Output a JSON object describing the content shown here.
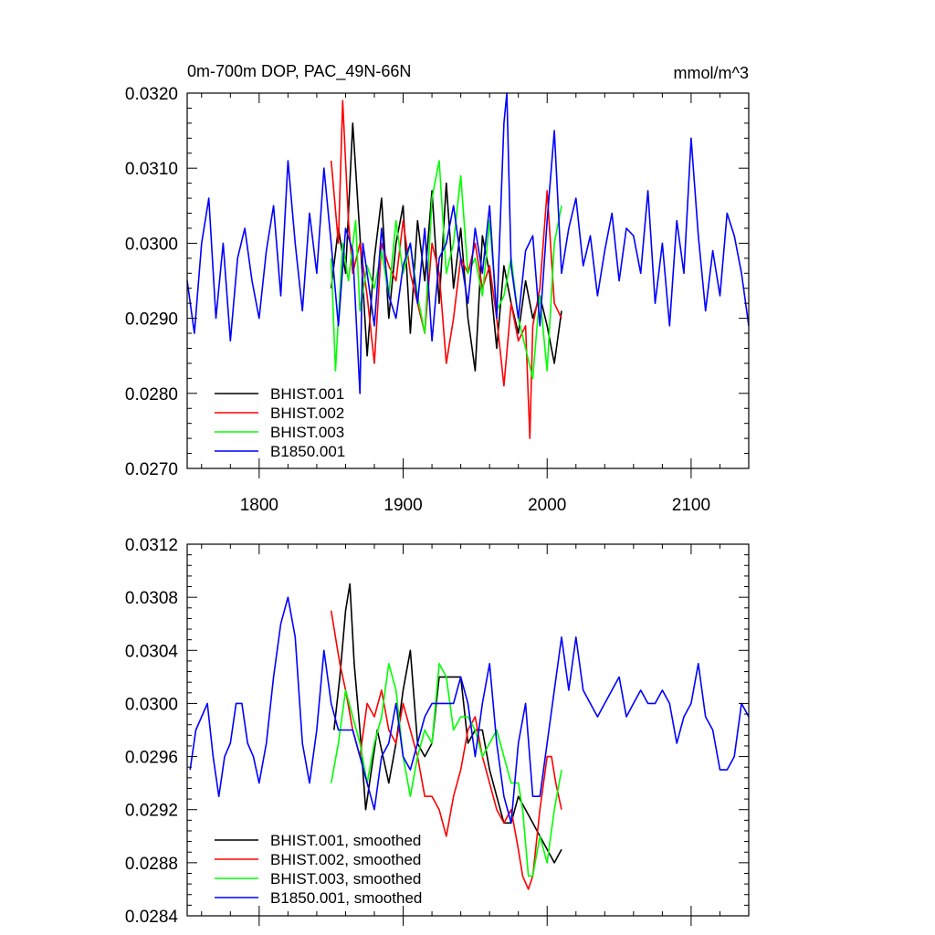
{
  "chart_data": [
    {
      "type": "line",
      "title": "0m-700m DOP, PAC_49N-66N",
      "units": "mmol/m^3",
      "xlim": [
        1750,
        2140
      ],
      "ylim": [
        0.027,
        0.032
      ],
      "x_ticks": [
        1800,
        1900,
        2000,
        2100
      ],
      "x_tick_labels": [
        "1800",
        "1900",
        "2000",
        "2100"
      ],
      "y_ticks": [
        0.027,
        0.028,
        0.029,
        0.03,
        0.031,
        0.032
      ],
      "y_tick_labels": [
        "0.0270",
        "0.0280",
        "0.0290",
        "0.0300",
        "0.0310",
        "0.0320"
      ],
      "legend_position": "bottom-left",
      "series": [
        {
          "name": "BHIST.001",
          "color": "#000000",
          "x": [
            1850,
            1855,
            1860,
            1865,
            1870,
            1875,
            1880,
            1885,
            1890,
            1895,
            1900,
            1905,
            1910,
            1915,
            1920,
            1925,
            1930,
            1935,
            1940,
            1945,
            1950,
            1955,
            1960,
            1965,
            1970,
            1975,
            1980,
            1985,
            1990,
            1995,
            2000,
            2005,
            2010
          ],
          "y": [
            0.0294,
            0.0302,
            0.0296,
            0.0316,
            0.0301,
            0.0285,
            0.0298,
            0.0306,
            0.029,
            0.03,
            0.0305,
            0.0288,
            0.0303,
            0.0295,
            0.0307,
            0.0292,
            0.0308,
            0.0294,
            0.0302,
            0.029,
            0.0283,
            0.0301,
            0.0296,
            0.0286,
            0.0297,
            0.0292,
            0.0288,
            0.0295,
            0.029,
            0.0293,
            0.0289,
            0.0284,
            0.0291
          ]
        },
        {
          "name": "BHIST.002",
          "color": "#ff0000",
          "x": [
            1850,
            1855,
            1858,
            1862,
            1865,
            1870,
            1875,
            1880,
            1885,
            1890,
            1895,
            1900,
            1905,
            1910,
            1915,
            1920,
            1925,
            1930,
            1935,
            1940,
            1945,
            1950,
            1955,
            1960,
            1965,
            1970,
            1975,
            1980,
            1985,
            1988,
            1990,
            1995,
            2000,
            2005,
            2010
          ],
          "y": [
            0.0311,
            0.03,
            0.0319,
            0.0303,
            0.0296,
            0.03,
            0.0293,
            0.0284,
            0.03,
            0.0297,
            0.0295,
            0.0303,
            0.0296,
            0.0292,
            0.0288,
            0.03,
            0.0296,
            0.0284,
            0.029,
            0.0298,
            0.0296,
            0.03,
            0.0294,
            0.0297,
            0.029,
            0.0281,
            0.0292,
            0.0287,
            0.0289,
            0.0274,
            0.0289,
            0.0294,
            0.0307,
            0.0292,
            0.029
          ]
        },
        {
          "name": "BHIST.003",
          "color": "#00ff00",
          "x": [
            1850,
            1853,
            1858,
            1862,
            1867,
            1870,
            1875,
            1880,
            1885,
            1890,
            1895,
            1900,
            1905,
            1910,
            1915,
            1920,
            1925,
            1930,
            1935,
            1940,
            1945,
            1950,
            1955,
            1960,
            1965,
            1970,
            1975,
            1980,
            1985,
            1990,
            1993,
            1995,
            2000,
            2005,
            2010
          ],
          "y": [
            0.0298,
            0.0283,
            0.03,
            0.0295,
            0.0303,
            0.0291,
            0.0297,
            0.0294,
            0.0299,
            0.0293,
            0.0303,
            0.0296,
            0.03,
            0.0293,
            0.0288,
            0.0306,
            0.0311,
            0.0296,
            0.03,
            0.0309,
            0.0296,
            0.0298,
            0.0293,
            0.0303,
            0.0291,
            0.0293,
            0.0298,
            0.029,
            0.0286,
            0.0282,
            0.0289,
            0.0293,
            0.0283,
            0.03,
            0.0305
          ]
        },
        {
          "name": "B1850.001",
          "color": "#0000ff",
          "x": [
            1750,
            1755,
            1760,
            1765,
            1770,
            1775,
            1780,
            1785,
            1790,
            1795,
            1800,
            1805,
            1810,
            1815,
            1820,
            1825,
            1830,
            1835,
            1840,
            1845,
            1850,
            1855,
            1860,
            1865,
            1870,
            1872,
            1875,
            1880,
            1885,
            1890,
            1895,
            1900,
            1905,
            1910,
            1915,
            1920,
            1925,
            1930,
            1935,
            1940,
            1945,
            1950,
            1955,
            1960,
            1965,
            1970,
            1972,
            1975,
            1980,
            1985,
            1990,
            1995,
            2000,
            2005,
            2010,
            2015,
            2020,
            2025,
            2030,
            2035,
            2040,
            2045,
            2050,
            2055,
            2060,
            2065,
            2070,
            2075,
            2080,
            2085,
            2090,
            2095,
            2100,
            2105,
            2110,
            2115,
            2120,
            2125,
            2130,
            2135,
            2140
          ],
          "y": [
            0.0295,
            0.0288,
            0.03,
            0.0306,
            0.029,
            0.03,
            0.0287,
            0.0298,
            0.0302,
            0.0295,
            0.029,
            0.0299,
            0.0305,
            0.0293,
            0.0311,
            0.03,
            0.0291,
            0.0304,
            0.0296,
            0.031,
            0.03,
            0.0289,
            0.0302,
            0.0299,
            0.028,
            0.03,
            0.0296,
            0.0289,
            0.0302,
            0.0293,
            0.029,
            0.0297,
            0.03,
            0.0292,
            0.0302,
            0.0287,
            0.0298,
            0.03,
            0.0305,
            0.0298,
            0.0292,
            0.0302,
            0.0296,
            0.0305,
            0.029,
            0.0316,
            0.032,
            0.0297,
            0.029,
            0.0299,
            0.0301,
            0.0289,
            0.0303,
            0.0315,
            0.0296,
            0.0302,
            0.0306,
            0.0297,
            0.0301,
            0.0293,
            0.0299,
            0.0304,
            0.0295,
            0.0302,
            0.0301,
            0.0296,
            0.0307,
            0.0292,
            0.03,
            0.0289,
            0.0303,
            0.0296,
            0.0314,
            0.0301,
            0.0291,
            0.0299,
            0.0293,
            0.0304,
            0.0301,
            0.0296,
            0.0289
          ]
        }
      ]
    },
    {
      "type": "line",
      "xlim": [
        1750,
        2140
      ],
      "ylim": [
        0.0284,
        0.0312
      ],
      "x_ticks": [
        1800,
        1900,
        2000,
        2100
      ],
      "x_tick_labels": [
        "",
        "",
        "",
        ""
      ],
      "y_ticks": [
        0.0284,
        0.0288,
        0.0292,
        0.0296,
        0.03,
        0.0304,
        0.0308,
        0.0312
      ],
      "y_tick_labels": [
        "0.0284",
        "0.0288",
        "0.0292",
        "0.0296",
        "0.0300",
        "0.0304",
        "0.0308",
        "0.0312"
      ],
      "legend_position": "bottom-left",
      "series": [
        {
          "name": "BHIST.001, smoothed",
          "color": "#000000",
          "x": [
            1852,
            1856,
            1860,
            1863,
            1866,
            1870,
            1874,
            1878,
            1882,
            1886,
            1890,
            1895,
            1900,
            1905,
            1910,
            1915,
            1920,
            1925,
            1930,
            1935,
            1940,
            1945,
            1950,
            1955,
            1960,
            1965,
            1970,
            1975,
            1980,
            1985,
            1990,
            1995,
            2000,
            2005,
            2010
          ],
          "y": [
            0.0298,
            0.0302,
            0.0307,
            0.0309,
            0.0303,
            0.0298,
            0.0292,
            0.0295,
            0.0298,
            0.0296,
            0.0294,
            0.0297,
            0.0301,
            0.0304,
            0.0297,
            0.0296,
            0.0297,
            0.0302,
            0.0302,
            0.0302,
            0.0302,
            0.0297,
            0.0298,
            0.0298,
            0.0295,
            0.0293,
            0.0291,
            0.0291,
            0.0293,
            0.0292,
            0.0291,
            0.029,
            0.0289,
            0.0288,
            0.0289
          ]
        },
        {
          "name": "BHIST.002, smoothed",
          "color": "#ff0000",
          "x": [
            1850,
            1853,
            1856,
            1860,
            1865,
            1870,
            1875,
            1880,
            1885,
            1890,
            1895,
            1900,
            1905,
            1910,
            1915,
            1920,
            1925,
            1930,
            1935,
            1940,
            1945,
            1950,
            1955,
            1960,
            1965,
            1970,
            1975,
            1980,
            1983,
            1987,
            1990,
            1995,
            2000,
            2003,
            2006,
            2010
          ],
          "y": [
            0.0307,
            0.0305,
            0.0303,
            0.0301,
            0.0298,
            0.0296,
            0.03,
            0.0299,
            0.0301,
            0.0298,
            0.0297,
            0.03,
            0.0298,
            0.0296,
            0.0293,
            0.0293,
            0.0292,
            0.029,
            0.0293,
            0.0295,
            0.0298,
            0.0299,
            0.0296,
            0.0294,
            0.0292,
            0.0291,
            0.0292,
            0.0289,
            0.0287,
            0.0286,
            0.0287,
            0.0292,
            0.0296,
            0.0296,
            0.0294,
            0.0292
          ]
        },
        {
          "name": "BHIST.003, smoothed",
          "color": "#00ff00",
          "x": [
            1850,
            1855,
            1860,
            1865,
            1870,
            1875,
            1880,
            1885,
            1890,
            1895,
            1900,
            1905,
            1910,
            1915,
            1920,
            1925,
            1930,
            1935,
            1940,
            1945,
            1950,
            1955,
            1960,
            1965,
            1970,
            1975,
            1980,
            1983,
            1987,
            1990,
            1995,
            2000,
            2005,
            2010
          ],
          "y": [
            0.0294,
            0.0297,
            0.0301,
            0.0299,
            0.0297,
            0.0294,
            0.0297,
            0.0299,
            0.0303,
            0.0301,
            0.0296,
            0.0293,
            0.0296,
            0.0298,
            0.0297,
            0.0303,
            0.0302,
            0.0298,
            0.0299,
            0.0299,
            0.0298,
            0.0296,
            0.0297,
            0.0298,
            0.0296,
            0.0294,
            0.0294,
            0.0292,
            0.0287,
            0.0287,
            0.029,
            0.0288,
            0.0292,
            0.0295
          ]
        },
        {
          "name": "B1850.001, smoothed",
          "color": "#0000ff",
          "x": [
            1752,
            1756,
            1760,
            1764,
            1768,
            1772,
            1776,
            1780,
            1784,
            1788,
            1792,
            1796,
            1800,
            1805,
            1810,
            1815,
            1820,
            1825,
            1830,
            1835,
            1840,
            1845,
            1850,
            1855,
            1860,
            1865,
            1870,
            1875,
            1880,
            1885,
            1890,
            1895,
            1900,
            1905,
            1910,
            1915,
            1920,
            1925,
            1930,
            1935,
            1940,
            1945,
            1950,
            1955,
            1960,
            1965,
            1970,
            1975,
            1980,
            1985,
            1990,
            1995,
            2000,
            2005,
            2010,
            2015,
            2020,
            2025,
            2030,
            2035,
            2040,
            2045,
            2050,
            2055,
            2060,
            2065,
            2070,
            2075,
            2080,
            2085,
            2090,
            2095,
            2100,
            2105,
            2110,
            2115,
            2120,
            2125,
            2130,
            2135,
            2140
          ],
          "y": [
            0.0295,
            0.0298,
            0.0299,
            0.03,
            0.0296,
            0.0293,
            0.0296,
            0.0297,
            0.03,
            0.03,
            0.0297,
            0.0296,
            0.0294,
            0.0297,
            0.0302,
            0.0306,
            0.0308,
            0.0305,
            0.0297,
            0.0294,
            0.0298,
            0.0304,
            0.03,
            0.0298,
            0.0298,
            0.0298,
            0.0296,
            0.0294,
            0.0292,
            0.0296,
            0.0297,
            0.03,
            0.0296,
            0.0295,
            0.0297,
            0.0299,
            0.03,
            0.03,
            0.03,
            0.03,
            0.0302,
            0.03,
            0.0296,
            0.03,
            0.0303,
            0.0297,
            0.0293,
            0.0291,
            0.0297,
            0.03,
            0.0293,
            0.0293,
            0.0297,
            0.0301,
            0.0305,
            0.0301,
            0.0305,
            0.0301,
            0.03,
            0.0299,
            0.03,
            0.0301,
            0.0302,
            0.0299,
            0.03,
            0.0301,
            0.03,
            0.03,
            0.0301,
            0.03,
            0.0297,
            0.0299,
            0.03,
            0.0303,
            0.0299,
            0.0298,
            0.0295,
            0.0295,
            0.0296,
            0.03,
            0.0299
          ]
        }
      ]
    }
  ]
}
